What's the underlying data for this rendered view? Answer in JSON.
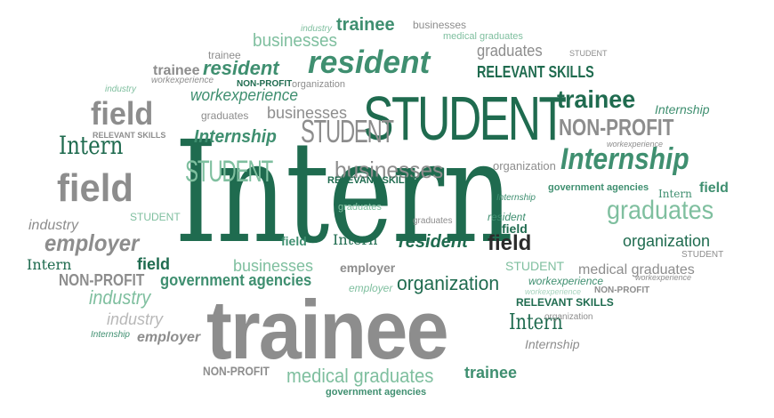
{
  "words": {
    "intern_main": "Intern",
    "student_main": "STUDENT",
    "trainee_main": "trainee",
    "resident_big": "resident",
    "internship_big": "Internship",
    "graduates_big": "graduates",
    "businesses_big": "businesses",
    "field_1": "field",
    "field_2": "field",
    "non_profit_big": "NON-PROFIT",
    "organization_big": "organization",
    "trainee_2": "trainee",
    "student_2": "STUDENT",
    "student_3": "STUDENT",
    "intern_2": "Intern",
    "intern_3": "Intern",
    "employer_big": "employer",
    "industry_1": "industry",
    "industry_2": "industry",
    "relevant_skills_1": "RELEVANT SKILLS",
    "relevant_skills_2": "RELEVANT SKILLS",
    "relevant_skills_3": "RELEVANT SKILLS",
    "relevant_skills_4": "RELEVANT SKILLS",
    "work_experience_1": "workexperience",
    "work_experience_2": "workexperience",
    "medical_graduates_1": "medical graduates",
    "medical_graduates_2": "medical graduates",
    "medical_graduates_3": "medical graduates",
    "government_agencies_1": "government agencies",
    "government_agencies_2": "government agencies",
    "government_agencies_3": "government agencies",
    "businesses_2": "businesses",
    "businesses_3": "businesses",
    "businesses_4": "businesses",
    "businesses_5": "businesses",
    "graduates_2": "graduates",
    "graduates_3": "graduates",
    "graduates_4": "graduates",
    "trainee_3": "trainee",
    "trainee_4": "trainee",
    "trainee_5": "trainee",
    "trainee_6": "trainee",
    "resident_2": "resident",
    "resident_3": "resident",
    "resident_4": "resident",
    "employer_2": "employer",
    "employer_3": "employer",
    "employer_4": "employer",
    "organization_2": "organization",
    "organization_3": "organization",
    "organization_4": "organization",
    "organization_5": "organization",
    "non_profit_2": "NON-PROFIT",
    "non_profit_3": "NON-PROFIT",
    "non_profit_4": "NON-PROFIT",
    "non_profit_5": "NON-PROFIT",
    "field_3": "field",
    "field_4": "field",
    "field_5": "field",
    "field_6": "field",
    "field_7": "field",
    "internship_2": "Internship",
    "internship_3": "Internship",
    "internship_4": "Internship",
    "internship_5": "Internship",
    "internship_6": "Internship",
    "industry_3": "industry",
    "industry_4": "industry",
    "industry_5": "industry",
    "student_4": "STUDENT",
    "student_5": "STUDENT",
    "student_6": "STUDENT",
    "student_7": "STUDENT",
    "intern_4": "Intern",
    "intern_5": "Intern",
    "intern_6": "Intern",
    "work_experience_3": "workexperience",
    "work_experience_4": "workexperience",
    "work_experience_5": "workexperience",
    "work_experience_6": "workexperience",
    "graduates_5": "graduates"
  }
}
